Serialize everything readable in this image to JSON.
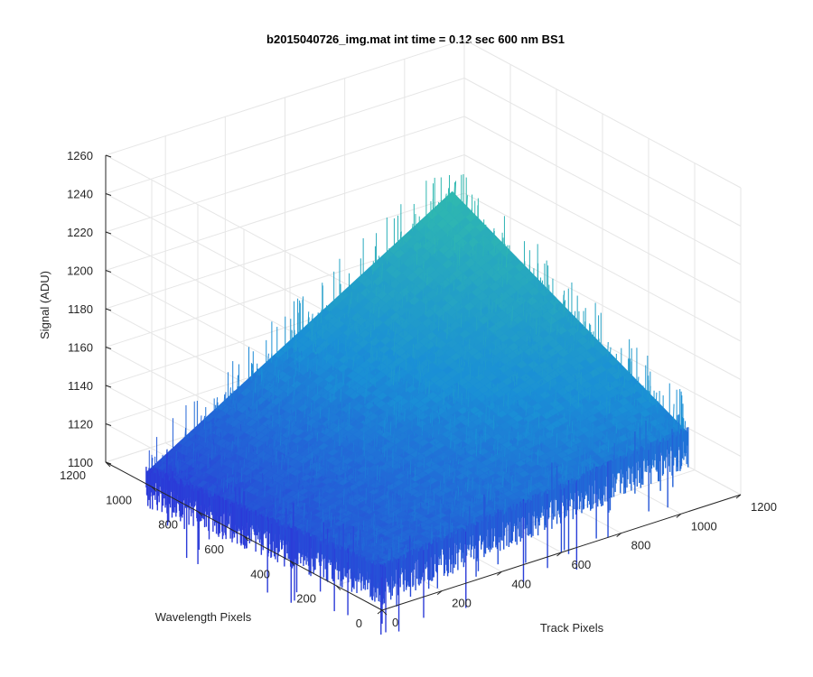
{
  "chart_data": {
    "type": "surface",
    "title": "b2015040726_img.mat int time = 0.12 sec  600 nm BS1",
    "xlabel": "Track Pixels",
    "ylabel": "Wavelength Pixels",
    "zlabel": "Signal (ADU)",
    "xlim": [
      0,
      1200
    ],
    "ylim": [
      0,
      1200
    ],
    "zlim": [
      1100,
      1260
    ],
    "x_ticks": [
      "0",
      "200",
      "400",
      "600",
      "800",
      "1000",
      "1200"
    ],
    "y_ticks": [
      "0",
      "200",
      "400",
      "600",
      "800",
      "1000",
      "1200"
    ],
    "z_ticks": [
      "1100",
      "1120",
      "1140",
      "1160",
      "1180",
      "1200",
      "1220",
      "1240",
      "1260"
    ],
    "grid": true,
    "colormap": "parula",
    "surface_extent": {
      "x": [
        0,
        1024
      ],
      "y": [
        0,
        1024
      ]
    },
    "surface_corners": {
      "x0_y0": 1121,
      "x1024_y0": 1141,
      "x0_y1024": 1106,
      "x1024_y1024": 1201
    },
    "noise_amplitude": 12,
    "colors": {
      "low": "#2b3bd8",
      "mid": "#1a8fd6",
      "high": "#2fb8b0"
    }
  }
}
